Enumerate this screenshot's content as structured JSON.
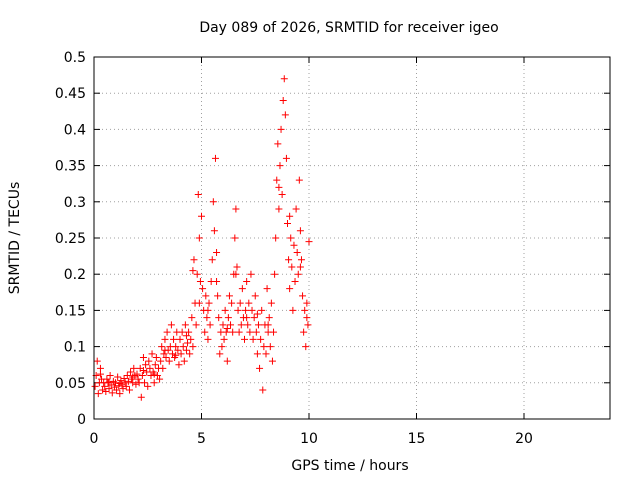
{
  "chart_data": {
    "type": "scatter",
    "title": "Day 089 of 2026, SRMTID for receiver igeo",
    "xlabel": "GPS time / hours",
    "ylabel": "SRMTID / TECUs",
    "xlim": [
      0,
      24
    ],
    "ylim": [
      0,
      0.5
    ],
    "xticks": [
      0,
      5,
      10,
      15,
      20
    ],
    "xtick_labels": [
      "0",
      "5",
      "10",
      "15",
      "20"
    ],
    "yticks": [
      0,
      0.05,
      0.1,
      0.15,
      0.2,
      0.25,
      0.3,
      0.35,
      0.4,
      0.45,
      0.5
    ],
    "ytick_labels": [
      "0",
      "0.05",
      "0.1",
      "0.15",
      "0.2",
      "0.25",
      "0.3",
      "0.35",
      "0.4",
      "0.45",
      "0.5"
    ],
    "grid": true,
    "marker": "+",
    "marker_color": "#ff0000",
    "series": [
      {
        "name": "SRMTID",
        "points": [
          [
            0.05,
            0.045
          ],
          [
            0.1,
            0.06
          ],
          [
            0.15,
            0.08
          ],
          [
            0.2,
            0.035
          ],
          [
            0.25,
            0.05
          ],
          [
            0.3,
            0.07
          ],
          [
            0.35,
            0.055
          ],
          [
            0.4,
            0.04
          ],
          [
            0.45,
            0.05
          ],
          [
            0.5,
            0.045
          ],
          [
            0.55,
            0.038
          ],
          [
            0.6,
            0.055
          ],
          [
            0.65,
            0.05
          ],
          [
            0.7,
            0.042
          ],
          [
            0.75,
            0.06
          ],
          [
            0.8,
            0.047
          ],
          [
            0.85,
            0.036
          ],
          [
            0.9,
            0.052
          ],
          [
            0.95,
            0.044
          ],
          [
            1.0,
            0.05
          ],
          [
            1.05,
            0.04
          ],
          [
            1.1,
            0.058
          ],
          [
            1.15,
            0.046
          ],
          [
            1.2,
            0.035
          ],
          [
            1.25,
            0.053
          ],
          [
            1.3,
            0.048
          ],
          [
            1.35,
            0.042
          ],
          [
            1.4,
            0.056
          ],
          [
            1.45,
            0.05
          ],
          [
            1.5,
            0.045
          ],
          [
            1.55,
            0.06
          ],
          [
            1.6,
            0.052
          ],
          [
            1.65,
            0.04
          ],
          [
            1.7,
            0.065
          ],
          [
            1.75,
            0.055
          ],
          [
            1.8,
            0.05
          ],
          [
            1.85,
            0.07
          ],
          [
            1.9,
            0.06
          ],
          [
            1.95,
            0.048
          ],
          [
            2.0,
            0.062
          ],
          [
            2.05,
            0.055
          ],
          [
            2.1,
            0.05
          ],
          [
            2.15,
            0.07
          ],
          [
            2.2,
            0.03
          ],
          [
            2.25,
            0.06
          ],
          [
            2.3,
            0.085
          ],
          [
            2.35,
            0.05
          ],
          [
            2.4,
            0.075
          ],
          [
            2.45,
            0.065
          ],
          [
            2.5,
            0.045
          ],
          [
            2.55,
            0.08
          ],
          [
            2.6,
            0.07
          ],
          [
            2.65,
            0.06
          ],
          [
            2.7,
            0.09
          ],
          [
            2.75,
            0.065
          ],
          [
            2.8,
            0.05
          ],
          [
            2.85,
            0.075
          ],
          [
            2.9,
            0.085
          ],
          [
            2.95,
            0.06
          ],
          [
            3.0,
            0.07
          ],
          [
            3.05,
            0.055
          ],
          [
            3.1,
            0.08
          ],
          [
            3.15,
            0.1
          ],
          [
            3.2,
            0.07
          ],
          [
            3.25,
            0.09
          ],
          [
            3.3,
            0.11
          ],
          [
            3.35,
            0.085
          ],
          [
            3.4,
            0.12
          ],
          [
            3.45,
            0.095
          ],
          [
            3.5,
            0.08
          ],
          [
            3.55,
            0.1
          ],
          [
            3.6,
            0.13
          ],
          [
            3.65,
            0.09
          ],
          [
            3.7,
            0.11
          ],
          [
            3.75,
            0.085
          ],
          [
            3.8,
            0.1
          ],
          [
            3.85,
            0.12
          ],
          [
            3.9,
            0.095
          ],
          [
            3.95,
            0.075
          ],
          [
            4.0,
            0.11
          ],
          [
            4.05,
            0.09
          ],
          [
            4.1,
            0.12
          ],
          [
            4.15,
            0.1
          ],
          [
            4.2,
            0.08
          ],
          [
            4.25,
            0.13
          ],
          [
            4.3,
            0.095
          ],
          [
            4.35,
            0.105
          ],
          [
            4.4,
            0.12
          ],
          [
            4.45,
            0.09
          ],
          [
            4.5,
            0.11
          ],
          [
            4.55,
            0.14
          ],
          [
            4.6,
            0.1
          ],
          [
            4.65,
            0.22
          ],
          [
            4.7,
            0.16
          ],
          [
            4.75,
            0.13
          ],
          [
            4.8,
            0.2
          ],
          [
            4.85,
            0.31
          ],
          [
            4.9,
            0.25
          ],
          [
            4.95,
            0.19
          ],
          [
            5.0,
            0.28
          ],
          [
            5.05,
            0.18
          ],
          [
            5.1,
            0.15
          ],
          [
            5.15,
            0.12
          ],
          [
            5.2,
            0.17
          ],
          [
            5.25,
            0.14
          ],
          [
            5.3,
            0.11
          ],
          [
            5.35,
            0.16
          ],
          [
            5.4,
            0.13
          ],
          [
            5.45,
            0.19
          ],
          [
            5.5,
            0.22
          ],
          [
            5.55,
            0.3
          ],
          [
            5.6,
            0.26
          ],
          [
            5.65,
            0.36
          ],
          [
            5.7,
            0.23
          ],
          [
            5.75,
            0.17
          ],
          [
            5.8,
            0.14
          ],
          [
            5.85,
            0.09
          ],
          [
            5.9,
            0.12
          ],
          [
            5.95,
            0.1
          ],
          [
            6.0,
            0.13
          ],
          [
            6.05,
            0.11
          ],
          [
            6.1,
            0.15
          ],
          [
            6.15,
            0.12
          ],
          [
            6.2,
            0.08
          ],
          [
            6.25,
            0.14
          ],
          [
            6.3,
            0.17
          ],
          [
            6.35,
            0.13
          ],
          [
            6.4,
            0.16
          ],
          [
            6.45,
            0.12
          ],
          [
            6.5,
            0.2
          ],
          [
            6.55,
            0.25
          ],
          [
            6.6,
            0.29
          ],
          [
            6.65,
            0.21
          ],
          [
            6.7,
            0.15
          ],
          [
            6.75,
            0.12
          ],
          [
            6.8,
            0.16
          ],
          [
            6.85,
            0.13
          ],
          [
            6.9,
            0.18
          ],
          [
            6.95,
            0.14
          ],
          [
            7.0,
            0.11
          ],
          [
            7.05,
            0.15
          ],
          [
            7.1,
            0.19
          ],
          [
            7.15,
            0.13
          ],
          [
            7.2,
            0.16
          ],
          [
            7.25,
            0.12
          ],
          [
            7.3,
            0.2
          ],
          [
            7.35,
            0.15
          ],
          [
            7.4,
            0.11
          ],
          [
            7.45,
            0.14
          ],
          [
            7.5,
            0.17
          ],
          [
            7.55,
            0.12
          ],
          [
            7.6,
            0.09
          ],
          [
            7.65,
            0.13
          ],
          [
            7.7,
            0.07
          ],
          [
            7.75,
            0.11
          ],
          [
            7.8,
            0.15
          ],
          [
            7.85,
            0.04
          ],
          [
            7.9,
            0.1
          ],
          [
            7.95,
            0.13
          ],
          [
            8.0,
            0.09
          ],
          [
            8.05,
            0.18
          ],
          [
            8.1,
            0.12
          ],
          [
            8.15,
            0.14
          ],
          [
            8.2,
            0.1
          ],
          [
            8.25,
            0.16
          ],
          [
            8.3,
            0.08
          ],
          [
            8.35,
            0.12
          ],
          [
            8.4,
            0.2
          ],
          [
            8.45,
            0.25
          ],
          [
            8.5,
            0.33
          ],
          [
            8.55,
            0.38
          ],
          [
            8.6,
            0.29
          ],
          [
            8.65,
            0.35
          ],
          [
            8.7,
            0.4
          ],
          [
            8.75,
            0.31
          ],
          [
            8.8,
            0.44
          ],
          [
            8.85,
            0.47
          ],
          [
            8.9,
            0.42
          ],
          [
            8.95,
            0.36
          ],
          [
            9.0,
            0.27
          ],
          [
            9.05,
            0.22
          ],
          [
            9.1,
            0.18
          ],
          [
            9.15,
            0.25
          ],
          [
            9.2,
            0.21
          ],
          [
            9.25,
            0.15
          ],
          [
            9.3,
            0.24
          ],
          [
            9.35,
            0.19
          ],
          [
            9.4,
            0.29
          ],
          [
            9.45,
            0.23
          ],
          [
            9.5,
            0.2
          ],
          [
            9.55,
            0.33
          ],
          [
            9.6,
            0.26
          ],
          [
            9.65,
            0.22
          ],
          [
            9.7,
            0.17
          ],
          [
            9.75,
            0.12
          ],
          [
            9.8,
            0.15
          ],
          [
            9.85,
            0.1
          ],
          [
            9.9,
            0.14
          ],
          [
            9.95,
            0.13
          ],
          [
            10.0,
            0.245
          ],
          [
            0.3,
            0.062
          ],
          [
            0.7,
            0.051
          ],
          [
            1.2,
            0.049
          ],
          [
            1.8,
            0.058
          ],
          [
            2.3,
            0.067
          ],
          [
            2.8,
            0.062
          ],
          [
            3.3,
            0.095
          ],
          [
            3.8,
            0.088
          ],
          [
            4.3,
            0.115
          ],
          [
            4.6,
            0.205
          ],
          [
            4.9,
            0.16
          ],
          [
            5.3,
            0.15
          ],
          [
            5.7,
            0.19
          ],
          [
            6.2,
            0.125
          ],
          [
            6.6,
            0.2
          ],
          [
            7.1,
            0.14
          ],
          [
            7.6,
            0.145
          ],
          [
            8.1,
            0.13
          ],
          [
            8.6,
            0.32
          ],
          [
            9.1,
            0.28
          ],
          [
            9.6,
            0.21
          ],
          [
            9.9,
            0.16
          ]
        ]
      }
    ]
  }
}
